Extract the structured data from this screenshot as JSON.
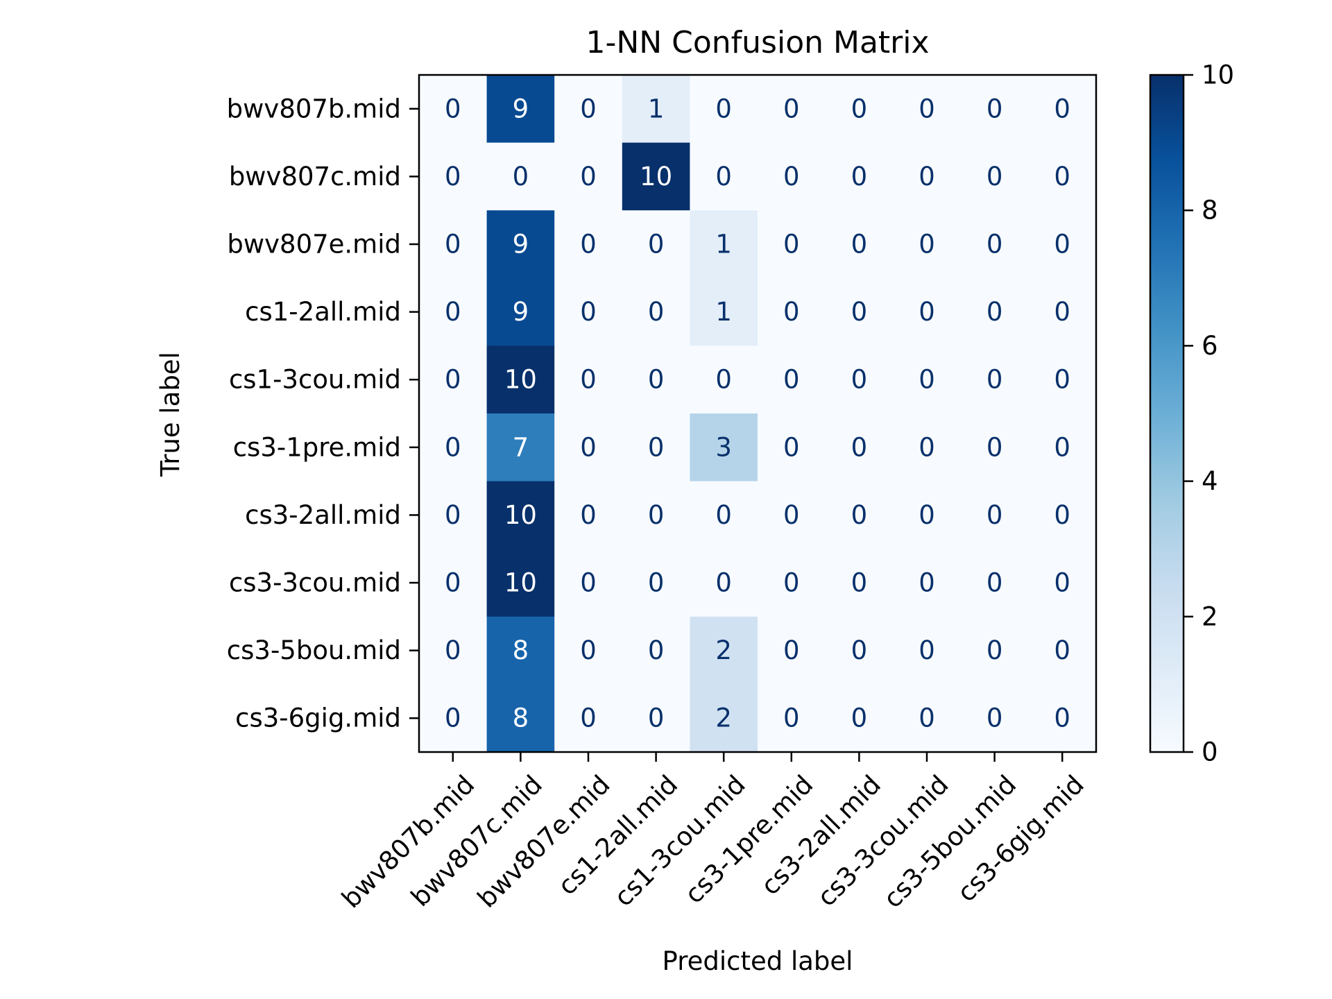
{
  "chart_data": {
    "type": "heatmap",
    "title": "1-NN Confusion Matrix",
    "xlabel": "Predicted label",
    "ylabel": "True label",
    "x_categories": [
      "bwv807b.mid",
      "bwv807c.mid",
      "bwv807e.mid",
      "cs1-2all.mid",
      "cs1-3cou.mid",
      "cs3-1pre.mid",
      "cs3-2all.mid",
      "cs3-3cou.mid",
      "cs3-5bou.mid",
      "cs3-6gig.mid"
    ],
    "y_categories": [
      "bwv807b.mid",
      "bwv807c.mid",
      "bwv807e.mid",
      "cs1-2all.mid",
      "cs1-3cou.mid",
      "cs3-1pre.mid",
      "cs3-2all.mid",
      "cs3-3cou.mid",
      "cs3-5bou.mid",
      "cs3-6gig.mid"
    ],
    "values": [
      [
        0,
        9,
        0,
        1,
        0,
        0,
        0,
        0,
        0,
        0
      ],
      [
        0,
        0,
        0,
        10,
        0,
        0,
        0,
        0,
        0,
        0
      ],
      [
        0,
        9,
        0,
        0,
        1,
        0,
        0,
        0,
        0,
        0
      ],
      [
        0,
        9,
        0,
        0,
        1,
        0,
        0,
        0,
        0,
        0
      ],
      [
        0,
        10,
        0,
        0,
        0,
        0,
        0,
        0,
        0,
        0
      ],
      [
        0,
        7,
        0,
        0,
        3,
        0,
        0,
        0,
        0,
        0
      ],
      [
        0,
        10,
        0,
        0,
        0,
        0,
        0,
        0,
        0,
        0
      ],
      [
        0,
        10,
        0,
        0,
        0,
        0,
        0,
        0,
        0,
        0
      ],
      [
        0,
        8,
        0,
        0,
        2,
        0,
        0,
        0,
        0,
        0
      ],
      [
        0,
        8,
        0,
        0,
        2,
        0,
        0,
        0,
        0,
        0
      ]
    ],
    "colormap": "Blues",
    "colorbar": {
      "min": 0,
      "max": 10,
      "ticks": [
        "0",
        "2",
        "4",
        "6",
        "8",
        "10"
      ]
    },
    "cell_text_colors": {
      "light": "#ffffff",
      "dark": "#08306b"
    },
    "grid": false
  }
}
